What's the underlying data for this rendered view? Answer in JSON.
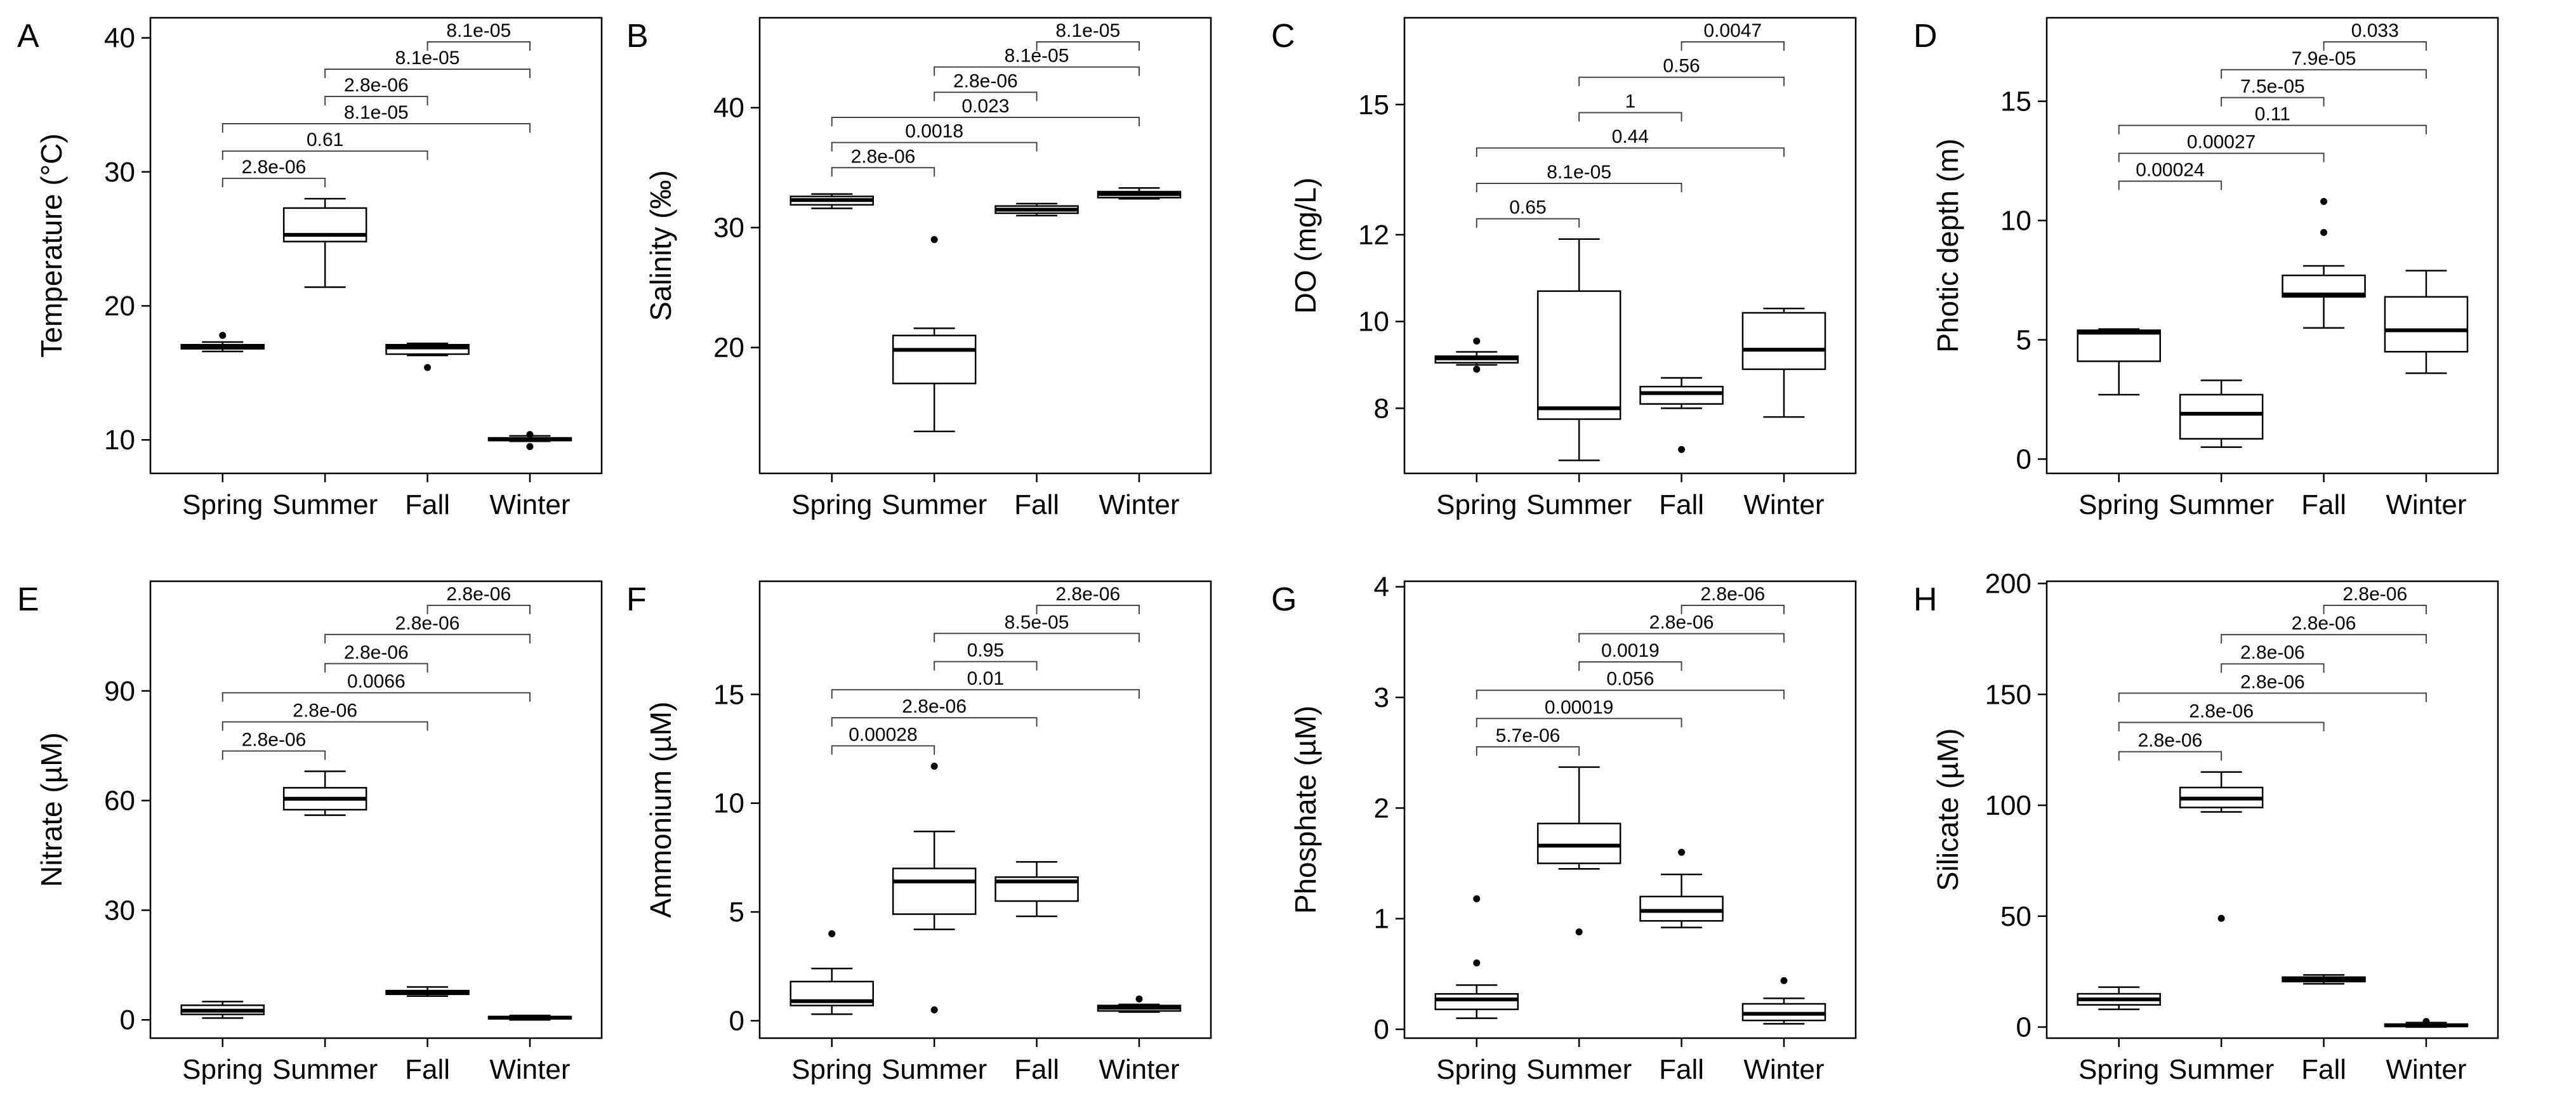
{
  "chart_data": [
    {
      "type": "box",
      "panel_label": "A",
      "ylabel": "Temperature (°C)",
      "categories": [
        "Spring",
        "Summer",
        "Fall",
        "Winter"
      ],
      "ylim": [
        7.5,
        41.5
      ],
      "yticks": [
        10,
        20,
        30,
        40
      ],
      "boxes": [
        {
          "min": 16.6,
          "q1": 16.8,
          "median": 16.95,
          "q3": 17.1,
          "max": 17.3,
          "outliers": [
            17.8
          ]
        },
        {
          "min": 21.4,
          "q1": 24.8,
          "median": 25.3,
          "q3": 27.3,
          "max": 28.0,
          "outliers": []
        },
        {
          "min": 16.3,
          "q1": 16.4,
          "median": 16.9,
          "q3": 17.1,
          "max": 17.2,
          "outliers": [
            15.4
          ]
        },
        {
          "min": 9.9,
          "q1": 9.95,
          "median": 10.05,
          "q3": 10.15,
          "max": 10.3,
          "outliers": [
            9.5,
            10.4
          ]
        }
      ],
      "comparisons": [
        {
          "from": "Spring",
          "to": "Summer",
          "p": "2.8e-06"
        },
        {
          "from": "Spring",
          "to": "Fall",
          "p": "0.61"
        },
        {
          "from": "Spring",
          "to": "Winter",
          "p": "8.1e-05"
        },
        {
          "from": "Summer",
          "to": "Fall",
          "p": "2.8e-06"
        },
        {
          "from": "Summer",
          "to": "Winter",
          "p": "8.1e-05"
        },
        {
          "from": "Fall",
          "to": "Winter",
          "p": "8.1e-05"
        }
      ]
    },
    {
      "type": "box",
      "panel_label": "B",
      "ylabel": "Salinity (‰)",
      "categories": [
        "Spring",
        "Summer",
        "Fall",
        "Winter"
      ],
      "ylim": [
        9.5,
        47.5
      ],
      "yticks": [
        20,
        30,
        40
      ],
      "boxes": [
        {
          "min": 31.6,
          "q1": 31.9,
          "median": 32.3,
          "q3": 32.6,
          "max": 32.8,
          "outliers": []
        },
        {
          "min": 13.0,
          "q1": 17.0,
          "median": 19.8,
          "q3": 21.0,
          "max": 21.6,
          "outliers": [
            29.0
          ]
        },
        {
          "min": 31.0,
          "q1": 31.2,
          "median": 31.5,
          "q3": 31.8,
          "max": 32.0,
          "outliers": []
        },
        {
          "min": 32.4,
          "q1": 32.5,
          "median": 32.8,
          "q3": 33.0,
          "max": 33.3,
          "outliers": []
        }
      ],
      "comparisons": [
        {
          "from": "Spring",
          "to": "Summer",
          "p": "2.8e-06"
        },
        {
          "from": "Spring",
          "to": "Fall",
          "p": "0.0018"
        },
        {
          "from": "Spring",
          "to": "Winter",
          "p": "0.023"
        },
        {
          "from": "Summer",
          "to": "Fall",
          "p": "2.8e-06"
        },
        {
          "from": "Summer",
          "to": "Winter",
          "p": "8.1e-05"
        },
        {
          "from": "Fall",
          "to": "Winter",
          "p": "8.1e-05"
        }
      ]
    },
    {
      "type": "box",
      "panel_label": "C",
      "ylabel": "DO (mg/L)",
      "categories": [
        "Spring",
        "Summer",
        "Fall",
        "Winter"
      ],
      "ylim": [
        6.5,
        17.0
      ],
      "yticks": [
        8,
        10,
        12,
        15
      ],
      "boxes": [
        {
          "min": 9.0,
          "q1": 9.05,
          "median": 9.15,
          "q3": 9.2,
          "max": 9.3,
          "outliers": [
            8.9,
            9.55
          ]
        },
        {
          "min": 6.8,
          "q1": 7.75,
          "median": 8.0,
          "q3": 10.7,
          "max": 11.9,
          "outliers": []
        },
        {
          "min": 8.0,
          "q1": 8.1,
          "median": 8.35,
          "q3": 8.5,
          "max": 8.7,
          "outliers": [
            7.05
          ]
        },
        {
          "min": 7.8,
          "q1": 8.9,
          "median": 9.35,
          "q3": 10.2,
          "max": 10.3,
          "outliers": []
        }
      ],
      "comparisons": [
        {
          "from": "Spring",
          "to": "Summer",
          "p": "0.65"
        },
        {
          "from": "Spring",
          "to": "Fall",
          "p": "8.1e-05"
        },
        {
          "from": "Spring",
          "to": "Winter",
          "p": "0.44"
        },
        {
          "from": "Summer",
          "to": "Fall",
          "p": "1"
        },
        {
          "from": "Summer",
          "to": "Winter",
          "p": "0.56"
        },
        {
          "from": "Fall",
          "to": "Winter",
          "p": "0.0047"
        }
      ]
    },
    {
      "type": "box",
      "panel_label": "D",
      "ylabel": "Photic depth (m)",
      "categories": [
        "Spring",
        "Summer",
        "Fall",
        "Winter"
      ],
      "ylim": [
        -0.6,
        18.5
      ],
      "yticks": [
        0,
        5,
        10,
        15
      ],
      "boxes": [
        {
          "min": 2.7,
          "q1": 4.1,
          "median": 5.3,
          "q3": 5.4,
          "max": 5.45,
          "outliers": []
        },
        {
          "min": 0.5,
          "q1": 0.85,
          "median": 1.9,
          "q3": 2.7,
          "max": 3.3,
          "outliers": []
        },
        {
          "min": 5.5,
          "q1": 6.8,
          "median": 6.9,
          "q3": 7.7,
          "max": 8.1,
          "outliers": [
            9.5,
            10.8
          ]
        },
        {
          "min": 3.6,
          "q1": 4.5,
          "median": 5.4,
          "q3": 6.8,
          "max": 7.9,
          "outliers": []
        }
      ],
      "comparisons": [
        {
          "from": "Spring",
          "to": "Summer",
          "p": "0.00024"
        },
        {
          "from": "Spring",
          "to": "Fall",
          "p": "0.00027"
        },
        {
          "from": "Spring",
          "to": "Winter",
          "p": "0.11"
        },
        {
          "from": "Summer",
          "to": "Fall",
          "p": "7.5e-05"
        },
        {
          "from": "Summer",
          "to": "Winter",
          "p": "7.9e-05"
        },
        {
          "from": "Fall",
          "to": "Winter",
          "p": "0.033"
        }
      ]
    },
    {
      "type": "box",
      "panel_label": "E",
      "ylabel": "Nitrate (µM)",
      "categories": [
        "Spring",
        "Summer",
        "Fall",
        "Winter"
      ],
      "ylim": [
        -5,
        120
      ],
      "yticks": [
        0,
        30,
        60,
        90
      ],
      "boxes": [
        {
          "min": 0.5,
          "q1": 1.5,
          "median": 2.5,
          "q3": 4.0,
          "max": 5.0,
          "outliers": []
        },
        {
          "min": 56,
          "q1": 57.5,
          "median": 60.5,
          "q3": 63.5,
          "max": 68,
          "outliers": []
        },
        {
          "min": 6.5,
          "q1": 7.0,
          "median": 7.5,
          "q3": 8.0,
          "max": 9.0,
          "outliers": []
        },
        {
          "min": 0.0,
          "q1": 0.3,
          "median": 0.6,
          "q3": 0.9,
          "max": 1.2,
          "outliers": []
        }
      ],
      "comparisons": [
        {
          "from": "Spring",
          "to": "Summer",
          "p": "2.8e-06"
        },
        {
          "from": "Spring",
          "to": "Fall",
          "p": "2.8e-06"
        },
        {
          "from": "Spring",
          "to": "Winter",
          "p": "0.0066"
        },
        {
          "from": "Summer",
          "to": "Fall",
          "p": "2.8e-06"
        },
        {
          "from": "Summer",
          "to": "Winter",
          "p": "2.8e-06"
        },
        {
          "from": "Fall",
          "to": "Winter",
          "p": "2.8e-06"
        }
      ]
    },
    {
      "type": "box",
      "panel_label": "F",
      "ylabel": "Ammonium (µM)",
      "categories": [
        "Spring",
        "Summer",
        "Fall",
        "Winter"
      ],
      "ylim": [
        -0.8,
        20.2
      ],
      "yticks": [
        0,
        5,
        10,
        15
      ],
      "boxes": [
        {
          "min": 0.3,
          "q1": 0.7,
          "median": 0.9,
          "q3": 1.8,
          "max": 2.4,
          "outliers": [
            4.0
          ]
        },
        {
          "min": 4.2,
          "q1": 4.9,
          "median": 6.4,
          "q3": 7.0,
          "max": 8.7,
          "outliers": [
            0.5,
            11.7
          ]
        },
        {
          "min": 4.8,
          "q1": 5.5,
          "median": 6.4,
          "q3": 6.6,
          "max": 7.3,
          "outliers": []
        },
        {
          "min": 0.4,
          "q1": 0.45,
          "median": 0.6,
          "q3": 0.7,
          "max": 0.75,
          "outliers": [
            1.0
          ]
        }
      ],
      "comparisons": [
        {
          "from": "Spring",
          "to": "Summer",
          "p": "0.00028"
        },
        {
          "from": "Spring",
          "to": "Fall",
          "p": "2.8e-06"
        },
        {
          "from": "Spring",
          "to": "Winter",
          "p": "0.01"
        },
        {
          "from": "Summer",
          "to": "Fall",
          "p": "0.95"
        },
        {
          "from": "Summer",
          "to": "Winter",
          "p": "8.5e-05"
        },
        {
          "from": "Fall",
          "to": "Winter",
          "p": "2.8e-06"
        }
      ]
    },
    {
      "type": "box",
      "panel_label": "G",
      "ylabel": "Phosphate (µM)",
      "categories": [
        "Spring",
        "Summer",
        "Fall",
        "Winter"
      ],
      "ylim": [
        -0.08,
        4.05
      ],
      "yticks": [
        0,
        1,
        2,
        3,
        4
      ],
      "boxes": [
        {
          "min": 0.1,
          "q1": 0.18,
          "median": 0.27,
          "q3": 0.32,
          "max": 0.4,
          "outliers": [
            0.6,
            1.18
          ]
        },
        {
          "min": 1.45,
          "q1": 1.5,
          "median": 1.66,
          "q3": 1.86,
          "max": 2.37,
          "outliers": [
            0.88
          ]
        },
        {
          "min": 0.92,
          "q1": 0.98,
          "median": 1.07,
          "q3": 1.2,
          "max": 1.4,
          "outliers": [
            1.6
          ]
        },
        {
          "min": 0.05,
          "q1": 0.08,
          "median": 0.14,
          "q3": 0.23,
          "max": 0.28,
          "outliers": [
            0.44
          ]
        }
      ],
      "comparisons": [
        {
          "from": "Spring",
          "to": "Summer",
          "p": "5.7e-06"
        },
        {
          "from": "Spring",
          "to": "Fall",
          "p": "0.00019"
        },
        {
          "from": "Spring",
          "to": "Winter",
          "p": "0.056"
        },
        {
          "from": "Summer",
          "to": "Fall",
          "p": "0.0019"
        },
        {
          "from": "Summer",
          "to": "Winter",
          "p": "2.8e-06"
        },
        {
          "from": "Fall",
          "to": "Winter",
          "p": "2.8e-06"
        }
      ]
    },
    {
      "type": "box",
      "panel_label": "H",
      "ylabel": "Silicate (µM)",
      "categories": [
        "Spring",
        "Summer",
        "Fall",
        "Winter"
      ],
      "ylim": [
        -5,
        201
      ],
      "yticks": [
        0,
        50,
        100,
        150,
        200
      ],
      "boxes": [
        {
          "min": 8,
          "q1": 10,
          "median": 12.5,
          "q3": 15,
          "max": 18,
          "outliers": []
        },
        {
          "min": 97,
          "q1": 99,
          "median": 103,
          "q3": 108,
          "max": 115,
          "outliers": [
            49
          ]
        },
        {
          "min": 19.5,
          "q1": 20.5,
          "median": 21.5,
          "q3": 22.5,
          "max": 23.5,
          "outliers": []
        },
        {
          "min": 0,
          "q1": 0.3,
          "median": 0.8,
          "q3": 1.3,
          "max": 2.0,
          "outliers": [
            2.5
          ]
        }
      ],
      "comparisons": [
        {
          "from": "Spring",
          "to": "Summer",
          "p": "2.8e-06"
        },
        {
          "from": "Spring",
          "to": "Fall",
          "p": "2.8e-06"
        },
        {
          "from": "Spring",
          "to": "Winter",
          "p": "2.8e-06"
        },
        {
          "from": "Summer",
          "to": "Fall",
          "p": "2.8e-06"
        },
        {
          "from": "Summer",
          "to": "Winter",
          "p": "2.8e-06"
        },
        {
          "from": "Fall",
          "to": "Winter",
          "p": "2.8e-06"
        }
      ]
    }
  ]
}
